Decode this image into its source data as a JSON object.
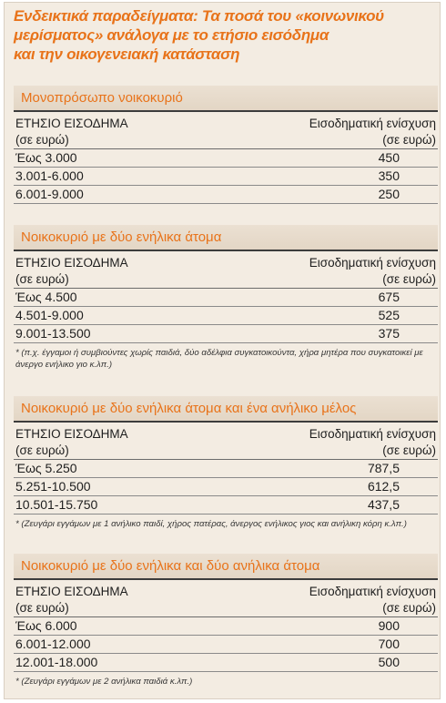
{
  "title": {
    "line1": "Ενδεικτικά παραδείγματα: Τα ποσά του «κοινωνικού",
    "line2": "μερίσματος» ανάλογα με το ετήσιο εισόδημα",
    "line3": "και την οικογενειακή κατάσταση"
  },
  "columns": {
    "income": "ΕΤΗΣΙΟ ΕΙΣΟΔΗΜΑ",
    "income_unit": "(σε ευρώ)",
    "support": "Εισοδηματική ενίσχυση",
    "support_unit": "(σε ευρώ)"
  },
  "sections": [
    {
      "heading": "Μονοπρόσωπο νοικοκυριό",
      "rows": [
        {
          "income": "Έως 3.000",
          "amount": "450"
        },
        {
          "income": "3.001-6.000",
          "amount": "350"
        },
        {
          "income": "6.001-9.000",
          "amount": "250"
        }
      ],
      "note": ""
    },
    {
      "heading": "Νοικοκυριό με δύο ενήλικα άτομα",
      "rows": [
        {
          "income": "Έως 4.500",
          "amount": "675"
        },
        {
          "income": "4.501-9.000",
          "amount": "525"
        },
        {
          "income": "9.001-13.500",
          "amount": "375"
        }
      ],
      "note": "* (π.χ. έγγαμοι ή συμβιούντες χωρίς παιδιά, δύο αδέλφια συγκατοικούντα, χήρα μητέρα που συγκατοικεί με άνεργο ενήλικο γιο κ.λπ.)"
    },
    {
      "heading": "Νοικοκυριό με δύο ενήλικα άτομα και ένα ανήλικο μέλος",
      "rows": [
        {
          "income": "Έως 5.250",
          "amount": "787,5"
        },
        {
          "income": "5.251-10.500",
          "amount": "612,5"
        },
        {
          "income": "10.501-15.750",
          "amount": "437,5"
        }
      ],
      "note": "* (Ζευγάρι εγγάμων με 1 ανήλικο παιδί, χήρος πατέρας, άνεργος ενήλικος γιος και ανήλικη κόρη κ.λπ.)"
    },
    {
      "heading": "Νοικοκυριό με δύο ενήλικα και δύο ανήλικα άτομα",
      "rows": [
        {
          "income": "Έως 6.000",
          "amount": "900"
        },
        {
          "income": "6.001-12.000",
          "amount": "700"
        },
        {
          "income": "12.001-18.000",
          "amount": "500"
        }
      ],
      "note": "* (Ζευγάρι εγγάμων με 2 ανήλικα παιδιά κ.λπ.)"
    }
  ]
}
